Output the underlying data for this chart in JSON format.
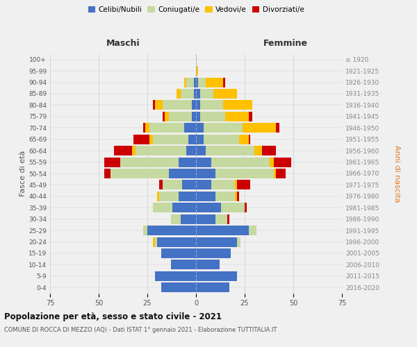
{
  "age_groups": [
    "100+",
    "95-99",
    "90-94",
    "85-89",
    "80-84",
    "75-79",
    "70-74",
    "65-69",
    "60-64",
    "55-59",
    "50-54",
    "45-49",
    "40-44",
    "35-39",
    "30-34",
    "25-29",
    "20-24",
    "15-19",
    "10-14",
    "5-9",
    "0-4"
  ],
  "birth_years": [
    "≤ 1920",
    "1921-1925",
    "1926-1930",
    "1931-1935",
    "1936-1940",
    "1941-1945",
    "1946-1950",
    "1951-1955",
    "1956-1960",
    "1961-1965",
    "1966-1970",
    "1971-1975",
    "1976-1980",
    "1981-1985",
    "1986-1990",
    "1991-1995",
    "1996-2000",
    "2001-2005",
    "2006-2010",
    "2011-2015",
    "2016-2020"
  ],
  "maschi": {
    "celibi": [
      0,
      0,
      1,
      1,
      2,
      2,
      6,
      4,
      5,
      9,
      14,
      7,
      9,
      12,
      8,
      25,
      20,
      18,
      13,
      21,
      18
    ],
    "coniugati": [
      0,
      0,
      4,
      7,
      15,
      12,
      18,
      18,
      26,
      30,
      30,
      10,
      10,
      10,
      5,
      2,
      1,
      0,
      0,
      0,
      0
    ],
    "vedovi": [
      0,
      0,
      1,
      2,
      4,
      2,
      2,
      2,
      2,
      0,
      0,
      0,
      1,
      0,
      0,
      0,
      1,
      0,
      0,
      0,
      0
    ],
    "divorziati": [
      0,
      0,
      0,
      0,
      1,
      1,
      1,
      8,
      9,
      8,
      3,
      2,
      0,
      0,
      0,
      0,
      0,
      0,
      0,
      0,
      0
    ]
  },
  "femmine": {
    "nubili": [
      0,
      0,
      1,
      2,
      2,
      2,
      4,
      4,
      5,
      8,
      10,
      8,
      10,
      13,
      10,
      27,
      21,
      18,
      12,
      21,
      17
    ],
    "coniugate": [
      0,
      0,
      4,
      7,
      12,
      13,
      20,
      18,
      25,
      30,
      30,
      12,
      10,
      12,
      6,
      4,
      2,
      0,
      0,
      0,
      0
    ],
    "vedove": [
      0,
      1,
      9,
      12,
      15,
      12,
      17,
      5,
      4,
      2,
      1,
      1,
      1,
      0,
      0,
      0,
      0,
      0,
      0,
      0,
      0
    ],
    "divorziate": [
      0,
      0,
      1,
      0,
      0,
      2,
      2,
      1,
      7,
      9,
      5,
      7,
      1,
      1,
      1,
      0,
      0,
      0,
      0,
      0,
      0
    ]
  },
  "colors": {
    "celibi": "#4472c4",
    "coniugati": "#c5d9a0",
    "vedovi": "#ffc000",
    "divorziati": "#cc0000"
  },
  "xlim": 75,
  "title": "Popolazione per età, sesso e stato civile - 2021",
  "subtitle": "COMUNE DI ROCCA DI MEZZO (AQ) - Dati ISTAT 1° gennaio 2021 - Elaborazione TUTTITALIA.IT",
  "ylabel_left": "Fasce di età",
  "ylabel_right": "Anni di nascita",
  "header_maschi": "Maschi",
  "header_femmine": "Femmine",
  "bg_color": "#f0f0f0",
  "bar_height": 0.85
}
